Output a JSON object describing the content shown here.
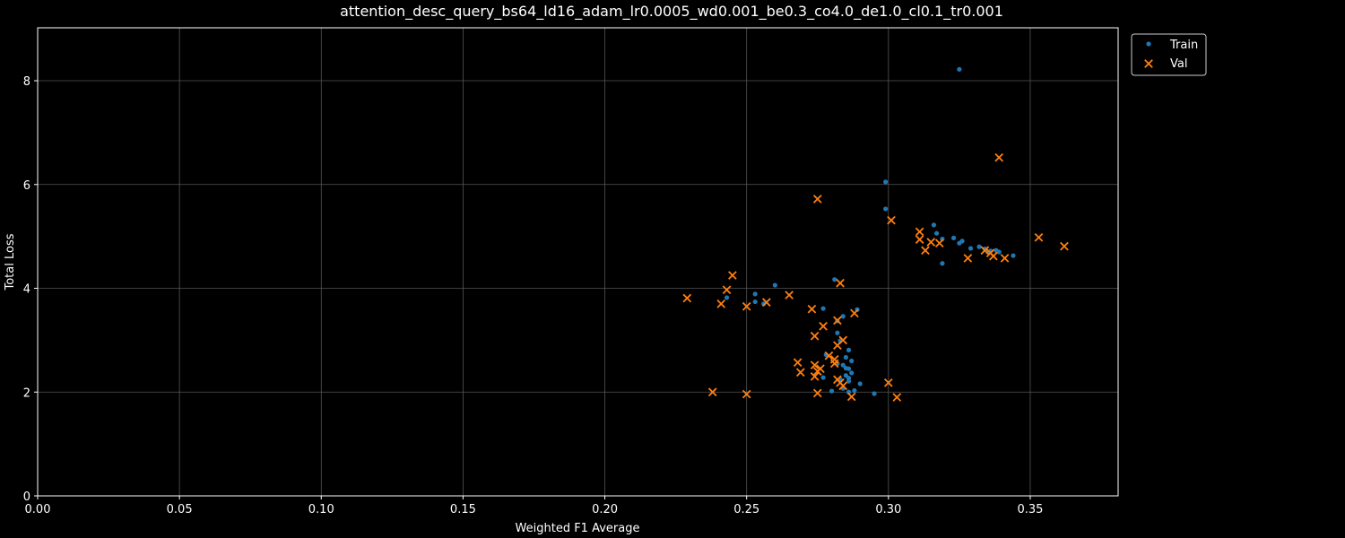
{
  "chart_data": {
    "type": "scatter",
    "title": "attention_desc_query_bs64_ld16_adam_lr0.0005_wd0.001_be0.3_co4.0_de1.0_cl0.1_tr0.001",
    "xlabel": "Weighted F1 Average",
    "ylabel": "Total Loss",
    "xlim": [
      0,
      0.381
    ],
    "ylim": [
      0,
      9.02
    ],
    "xticks": [
      0.0,
      0.05,
      0.1,
      0.15,
      0.2,
      0.25,
      0.3,
      0.35
    ],
    "xtick_labels": [
      "0.00",
      "0.05",
      "0.10",
      "0.15",
      "0.20",
      "0.25",
      "0.30",
      "0.35"
    ],
    "yticks": [
      0,
      2,
      4,
      6,
      8
    ],
    "ytick_labels": [
      "0",
      "2",
      "4",
      "6",
      "8"
    ],
    "grid": true,
    "legend": "upper-right-outside",
    "colors": {
      "background": "#000000",
      "axes": "#ffffff",
      "grid": "#555555",
      "train": "#1f77b4",
      "val": "#ff7f0e"
    },
    "series": [
      {
        "name": "Train",
        "marker": "dot",
        "color": "#1f77b4",
        "points": [
          [
            0.325,
            8.22
          ],
          [
            0.299,
            6.05
          ],
          [
            0.299,
            5.53
          ],
          [
            0.316,
            5.22
          ],
          [
            0.317,
            5.06
          ],
          [
            0.319,
            4.95
          ],
          [
            0.323,
            4.97
          ],
          [
            0.325,
            4.87
          ],
          [
            0.326,
            4.91
          ],
          [
            0.329,
            4.77
          ],
          [
            0.332,
            4.8
          ],
          [
            0.334,
            4.76
          ],
          [
            0.336,
            4.72
          ],
          [
            0.338,
            4.73
          ],
          [
            0.339,
            4.7
          ],
          [
            0.344,
            4.63
          ],
          [
            0.319,
            4.48
          ],
          [
            0.335,
            4.7
          ],
          [
            0.281,
            4.17
          ],
          [
            0.26,
            4.06
          ],
          [
            0.253,
            3.89
          ],
          [
            0.253,
            3.74
          ],
          [
            0.243,
            3.82
          ],
          [
            0.256,
            3.7
          ],
          [
            0.277,
            3.61
          ],
          [
            0.289,
            3.59
          ],
          [
            0.284,
            3.46
          ],
          [
            0.282,
            3.37
          ],
          [
            0.282,
            3.14
          ],
          [
            0.283,
            2.99
          ],
          [
            0.286,
            2.81
          ],
          [
            0.285,
            2.67
          ],
          [
            0.287,
            2.6
          ],
          [
            0.282,
            2.55
          ],
          [
            0.284,
            2.52
          ],
          [
            0.286,
            2.45
          ],
          [
            0.287,
            2.37
          ],
          [
            0.285,
            2.32
          ],
          [
            0.286,
            2.27
          ],
          [
            0.286,
            2.21
          ],
          [
            0.283,
            2.25
          ],
          [
            0.277,
            2.28
          ],
          [
            0.29,
            2.16
          ],
          [
            0.284,
            2.07
          ],
          [
            0.288,
            2.03
          ],
          [
            0.28,
            2.02
          ],
          [
            0.286,
            2.0
          ],
          [
            0.295,
            1.97
          ],
          [
            0.278,
            2.72
          ],
          [
            0.285,
            2.46
          ]
        ]
      },
      {
        "name": "Val",
        "marker": "x",
        "color": "#ff7f0e",
        "points": [
          [
            0.339,
            6.52
          ],
          [
            0.275,
            5.72
          ],
          [
            0.301,
            5.31
          ],
          [
            0.311,
            5.09
          ],
          [
            0.311,
            4.94
          ],
          [
            0.315,
            4.89
          ],
          [
            0.318,
            4.87
          ],
          [
            0.313,
            4.73
          ],
          [
            0.334,
            4.73
          ],
          [
            0.336,
            4.68
          ],
          [
            0.337,
            4.62
          ],
          [
            0.328,
            4.58
          ],
          [
            0.341,
            4.58
          ],
          [
            0.353,
            4.98
          ],
          [
            0.362,
            4.81
          ],
          [
            0.245,
            4.25
          ],
          [
            0.283,
            4.1
          ],
          [
            0.243,
            3.97
          ],
          [
            0.265,
            3.87
          ],
          [
            0.229,
            3.81
          ],
          [
            0.241,
            3.7
          ],
          [
            0.257,
            3.73
          ],
          [
            0.25,
            3.65
          ],
          [
            0.273,
            3.6
          ],
          [
            0.288,
            3.52
          ],
          [
            0.282,
            3.38
          ],
          [
            0.277,
            3.27
          ],
          [
            0.274,
            3.08
          ],
          [
            0.284,
            3.0
          ],
          [
            0.282,
            2.9
          ],
          [
            0.279,
            2.7
          ],
          [
            0.281,
            2.63
          ],
          [
            0.268,
            2.57
          ],
          [
            0.281,
            2.55
          ],
          [
            0.274,
            2.52
          ],
          [
            0.276,
            2.45
          ],
          [
            0.275,
            2.4
          ],
          [
            0.269,
            2.38
          ],
          [
            0.274,
            2.3
          ],
          [
            0.282,
            2.24
          ],
          [
            0.283,
            2.18
          ],
          [
            0.3,
            2.18
          ],
          [
            0.284,
            2.12
          ],
          [
            0.238,
            2.0
          ],
          [
            0.275,
            1.98
          ],
          [
            0.25,
            1.96
          ],
          [
            0.287,
            1.91
          ],
          [
            0.303,
            1.9
          ]
        ]
      }
    ]
  }
}
